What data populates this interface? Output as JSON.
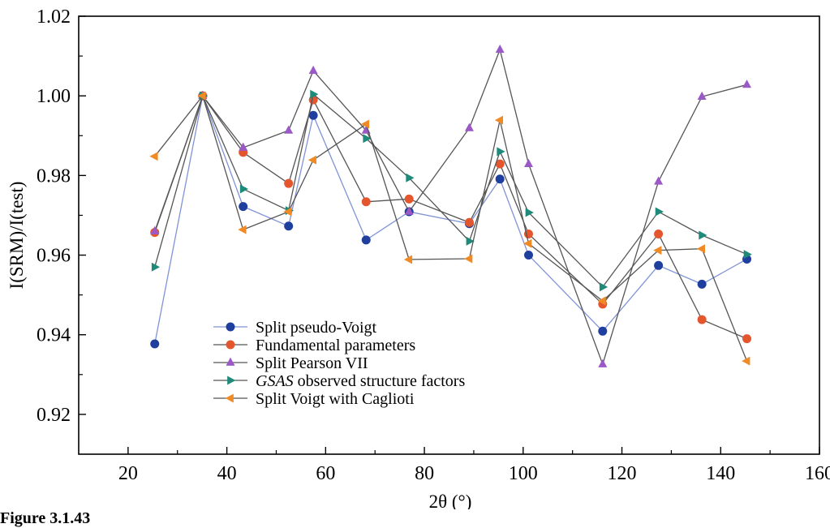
{
  "caption": "Figure 3.1.43",
  "chart_data": {
    "type": "line",
    "xlabel": "2θ (°)",
    "ylabel": "I(SRM)/I(test)",
    "xlim": [
      10,
      160
    ],
    "ylim": [
      0.91,
      1.02
    ],
    "x_ticks": [
      20,
      40,
      60,
      80,
      100,
      120,
      140,
      160
    ],
    "y_ticks": [
      0.92,
      0.94,
      0.96,
      0.98,
      1.0,
      1.02
    ],
    "x_tick_labels": [
      "20",
      "40",
      "60",
      "80",
      "100",
      "120",
      "140",
      "160"
    ],
    "y_tick_labels": [
      "0.92",
      "0.94",
      "0.96",
      "0.98",
      "1.00",
      "1.02"
    ],
    "legend_position": "lower-left",
    "grid": false,
    "series": [
      {
        "name": "Split pseudo-Voigt",
        "marker": "circle",
        "color": "#1f3f9f",
        "line_color": "#7f93d6",
        "x": [
          25.4,
          35.1,
          43.3,
          52.5,
          57.5,
          68.2,
          76.9,
          89.1,
          95.3,
          101.1,
          116.1,
          127.4,
          136.2,
          145.3
        ],
        "y": [
          0.9377,
          1.0,
          0.9722,
          0.9673,
          0.9951,
          0.9638,
          0.9709,
          0.9679,
          0.9791,
          0.96,
          0.9409,
          0.9574,
          0.9527,
          0.959
        ]
      },
      {
        "name": "Fundamental parameters",
        "marker": "circle",
        "color": "#e4572e",
        "line_color": "#555555",
        "x": [
          25.4,
          35.1,
          43.3,
          52.5,
          57.5,
          68.2,
          76.9,
          89.1,
          95.3,
          101.1,
          116.1,
          127.4,
          136.2,
          145.3
        ],
        "y": [
          0.9657,
          1.0,
          0.9858,
          0.978,
          0.999,
          0.9734,
          0.9741,
          0.9682,
          0.9829,
          0.9653,
          0.9477,
          0.9653,
          0.9438,
          0.939
        ]
      },
      {
        "name": "Split Pearson VII",
        "marker": "triangle-up",
        "color": "#9b59c6",
        "line_color": "#555555",
        "x": [
          25.4,
          35.1,
          43.3,
          52.5,
          57.5,
          68.2,
          76.9,
          89.1,
          95.3,
          101.1,
          116.1,
          127.4,
          136.2,
          145.3
        ],
        "y": [
          0.966,
          1.0,
          0.987,
          0.9913,
          1.0063,
          0.9913,
          0.9709,
          0.9919,
          1.0116,
          0.9829,
          0.9326,
          0.9785,
          0.9998,
          1.0028
        ]
      },
      {
        "name": "GSAS observed structure factors",
        "marker": "triangle-right",
        "color": "#1e8a7a",
        "line_color": "#555555",
        "x": [
          25.4,
          35.1,
          43.3,
          52.5,
          57.5,
          68.2,
          76.9,
          89.1,
          95.3,
          101.1,
          116.1,
          127.4,
          136.2,
          145.3
        ],
        "y": [
          0.957,
          1.0,
          0.9766,
          0.9712,
          1.0004,
          0.9893,
          0.9794,
          0.9635,
          0.986,
          0.9707,
          0.952,
          0.9709,
          0.965,
          0.9602
        ]
      },
      {
        "name": "Split Voigt with Caglioti",
        "marker": "triangle-left",
        "color": "#f08a24",
        "line_color": "#555555",
        "x": [
          25.4,
          35.1,
          43.3,
          52.5,
          57.5,
          68.2,
          76.9,
          89.1,
          95.3,
          101.1,
          116.1,
          127.4,
          136.2,
          145.3
        ],
        "y": [
          0.9848,
          1.0,
          0.9664,
          0.9709,
          0.9839,
          0.9929,
          0.9589,
          0.9591,
          0.9939,
          0.9629,
          0.9485,
          0.9612,
          0.9616,
          0.9334
        ]
      }
    ]
  }
}
